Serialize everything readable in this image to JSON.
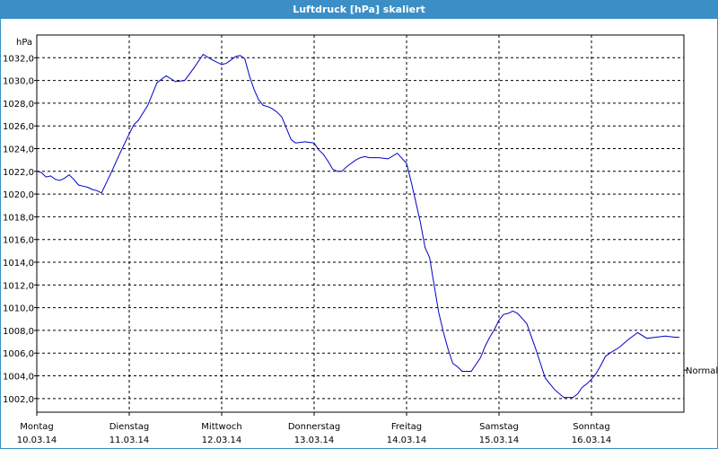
{
  "window": {
    "title": "Luftdruck [hPa] skaliert"
  },
  "chart_data": {
    "type": "line",
    "title": "Luftdruck [hPa] skaliert",
    "ylabel": "hPa",
    "ylim": [
      1000.8,
      1034.0
    ],
    "xlim": [
      0,
      7
    ],
    "y_ticks": [
      "1002,0",
      "1004,0",
      "1006,0",
      "1008,0",
      "1010,0",
      "1012,0",
      "1014,0",
      "1016,0",
      "1018,0",
      "1020,0",
      "1022,0",
      "1024,0",
      "1026,0",
      "1028,0",
      "1030,0",
      "1032,0"
    ],
    "y_tick_values": [
      1002,
      1004,
      1006,
      1008,
      1010,
      1012,
      1014,
      1016,
      1018,
      1020,
      1022,
      1024,
      1026,
      1028,
      1030,
      1032
    ],
    "x_ticks": [
      {
        "day": "Montag",
        "date": "10.03.14"
      },
      {
        "day": "Dienstag",
        "date": "11.03.14"
      },
      {
        "day": "Mittwoch",
        "date": "12.03.14"
      },
      {
        "day": "Donnerstag",
        "date": "13.03.14"
      },
      {
        "day": "Freitag",
        "date": "14.03.14"
      },
      {
        "day": "Samstag",
        "date": "15.03.14"
      },
      {
        "day": "Sonntag",
        "date": "16.03.14"
      }
    ],
    "reference_line": {
      "label": "Normal",
      "value": 1004.5
    },
    "grid": true,
    "line_color": "#0000c8",
    "series": [
      {
        "x": [
          0,
          0.05,
          0.1,
          0.15,
          0.2,
          0.25,
          0.3,
          0.35,
          0.4,
          0.45,
          0.5,
          0.55,
          0.6,
          0.65,
          0.7,
          0.8,
          0.9,
          1.0,
          1.05,
          1.1,
          1.2,
          1.3,
          1.4,
          1.5,
          1.6,
          1.7,
          1.8,
          1.9,
          2.0,
          2.05,
          2.1,
          2.15,
          2.2,
          2.25,
          2.3,
          2.35,
          2.4,
          2.45,
          2.5,
          2.55,
          2.6,
          2.65,
          2.7,
          2.75,
          2.8,
          2.9,
          3.0,
          3.05,
          3.1,
          3.15,
          3.2,
          3.25,
          3.3,
          3.35,
          3.4,
          3.45,
          3.5,
          3.55,
          3.6,
          3.7,
          3.8,
          3.9,
          4.0,
          4.05,
          4.1,
          4.15,
          4.2,
          4.25,
          4.3,
          4.35,
          4.4,
          4.45,
          4.5,
          4.55,
          4.6,
          4.7,
          4.8,
          4.85,
          4.9,
          4.95,
          5.0,
          5.05,
          5.1,
          5.15,
          5.2,
          5.3,
          5.4,
          5.5,
          5.6,
          5.7,
          5.8,
          5.85,
          5.9,
          5.95,
          6.0,
          6.05,
          6.1,
          6.15,
          6.2,
          6.3,
          6.4,
          6.5,
          6.6,
          6.7,
          6.8,
          6.9,
          6.95
        ],
        "y": [
          1022.0,
          1021.9,
          1021.5,
          1021.6,
          1021.3,
          1021.2,
          1021.4,
          1021.7,
          1021.3,
          1020.8,
          1020.7,
          1020.6,
          1020.4,
          1020.3,
          1020.1,
          1021.8,
          1023.6,
          1025.3,
          1026.1,
          1026.5,
          1027.8,
          1029.8,
          1030.4,
          1029.9,
          1030.0,
          1031.1,
          1032.3,
          1031.8,
          1031.4,
          1031.5,
          1031.8,
          1032.1,
          1032.2,
          1031.9,
          1030.4,
          1029.2,
          1028.3,
          1027.8,
          1027.7,
          1027.5,
          1027.2,
          1026.8,
          1025.8,
          1024.8,
          1024.5,
          1024.6,
          1024.5,
          1023.9,
          1023.5,
          1022.9,
          1022.2,
          1022.0,
          1022.0,
          1022.4,
          1022.7,
          1023.0,
          1023.2,
          1023.3,
          1023.2,
          1023.2,
          1023.1,
          1023.6,
          1022.7,
          1021.1,
          1019.3,
          1017.5,
          1015.3,
          1014.4,
          1011.9,
          1009.5,
          1007.8,
          1006.3,
          1005.1,
          1004.8,
          1004.4,
          1004.4,
          1005.6,
          1006.6,
          1007.4,
          1008.1,
          1008.9,
          1009.4,
          1009.5,
          1009.7,
          1009.5,
          1008.6,
          1006.3,
          1003.8,
          1002.8,
          1002.1,
          1002.1,
          1002.4,
          1003.0,
          1003.3,
          1003.7,
          1004.2,
          1004.9,
          1005.7,
          1006.0,
          1006.5,
          1007.2,
          1007.8,
          1007.3,
          1007.4,
          1007.5,
          1007.4,
          1007.4
        ]
      }
    ]
  }
}
